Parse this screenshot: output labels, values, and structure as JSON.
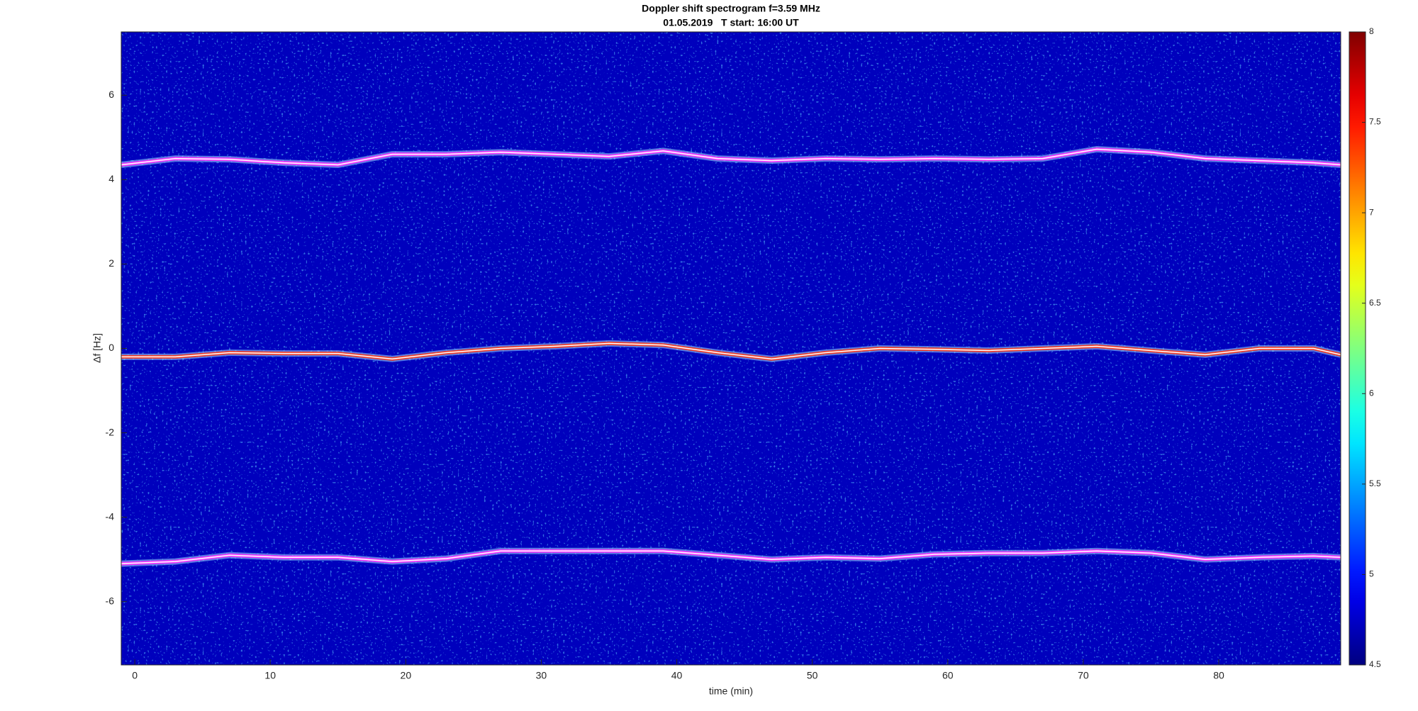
{
  "chart_data": {
    "type": "spectrogram",
    "title": "Doppler shift spectrogram f=3.59 MHz",
    "subtitle": "01.05.2019   T start: 16:00 UT",
    "x_label": "time (min)",
    "y_label": "Δf [Hz]",
    "xlim": [
      -1,
      89
    ],
    "ylim": [
      -7.5,
      7.5
    ],
    "xticks": [
      0,
      10,
      20,
      30,
      40,
      50,
      60,
      70,
      80
    ],
    "yticks": [
      -6,
      -4,
      -2,
      0,
      2,
      4,
      6
    ],
    "colormap": "jet",
    "clim": [
      4.5,
      8
    ],
    "cticks": [
      4.5,
      5,
      5.5,
      6,
      6.5,
      7,
      7.5,
      8
    ],
    "x": [
      -1,
      3,
      7,
      11,
      15,
      19,
      23,
      27,
      31,
      35,
      39,
      43,
      47,
      51,
      55,
      59,
      63,
      67,
      71,
      75,
      79,
      83,
      87,
      89
    ],
    "series": [
      {
        "color": "#ff33ff",
        "values": [
          4.35,
          4.5,
          4.48,
          4.4,
          4.35,
          4.6,
          4.6,
          4.65,
          4.6,
          4.55,
          4.68,
          4.5,
          4.45,
          4.5,
          4.48,
          4.5,
          4.48,
          4.5,
          4.72,
          4.65,
          4.5,
          4.45,
          4.4,
          4.35
        ]
      },
      {
        "color": "#ff3a1a",
        "values": [
          -0.2,
          -0.2,
          -0.1,
          -0.12,
          -0.12,
          -0.25,
          -0.1,
          0.0,
          0.05,
          0.12,
          0.08,
          -0.1,
          -0.25,
          -0.1,
          0.0,
          -0.02,
          -0.05,
          0.0,
          0.05,
          -0.05,
          -0.15,
          0.0,
          0.0,
          -0.15
        ]
      },
      {
        "color": "#ff33ff",
        "values": [
          -5.1,
          -5.05,
          -4.9,
          -4.95,
          -4.95,
          -5.05,
          -4.98,
          -4.8,
          -4.8,
          -4.8,
          -4.8,
          -4.9,
          -5.0,
          -4.95,
          -4.98,
          -4.88,
          -4.85,
          -4.85,
          -4.8,
          -4.85,
          -5.0,
          -4.95,
          -4.92,
          -4.95
        ]
      }
    ]
  }
}
